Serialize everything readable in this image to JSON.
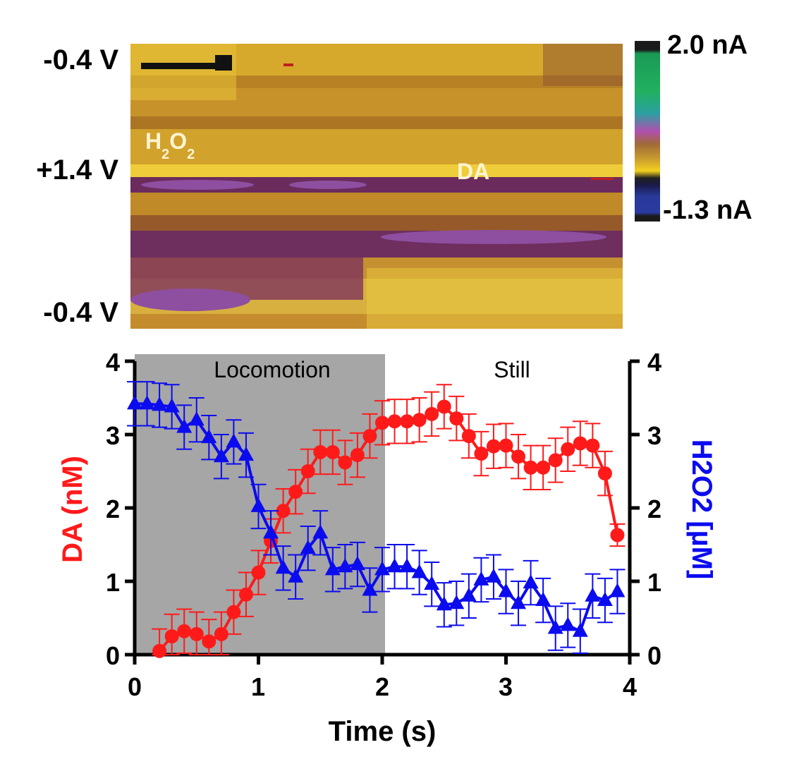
{
  "chart_data": [
    {
      "type": "heatmap",
      "title": "",
      "y_tick_labels": [
        "-0.4 V",
        "+1.4 V",
        "-0.4 V"
      ],
      "colorbar": {
        "max_label": "2.0 nA",
        "min_label": "-1.3 nA",
        "max": 2.0,
        "min": -1.3
      },
      "annotations": {
        "h2o2": {
          "base": "H",
          "sub1": "2",
          "mid": "O",
          "sub2": "2"
        },
        "da": "DA"
      },
      "colors": {
        "background": "#c99528",
        "high": "#f0d040",
        "low": "#7a2e5f",
        "purple": "#8e4fa0"
      }
    },
    {
      "type": "line",
      "xlabel": "Time (s)",
      "ylabel_left": "DA (nM)",
      "ylabel_right": "H2O2 [µM]",
      "xlim": [
        0,
        4
      ],
      "ylim_left": [
        0,
        4
      ],
      "ylim_right": [
        0,
        4
      ],
      "x_ticks": [
        "0",
        "1",
        "2",
        "3",
        "4"
      ],
      "y_ticks_left": [
        "0",
        "1",
        "2",
        "3",
        "4"
      ],
      "y_ticks_right": [
        "0",
        "1",
        "2",
        "3",
        "4"
      ],
      "shaded_region": {
        "x_start": 0,
        "x_end": 2.0,
        "label": "Locomotion",
        "color": "#a6a6a6"
      },
      "unshaded_label": "Still",
      "series": [
        {
          "name": "DA (nM)",
          "color": "#ff1a1a",
          "marker": "circle",
          "x": [
            0.2,
            0.3,
            0.4,
            0.5,
            0.6,
            0.7,
            0.8,
            0.9,
            1.0,
            1.1,
            1.2,
            1.3,
            1.4,
            1.5,
            1.6,
            1.7,
            1.8,
            1.9,
            2.0,
            2.1,
            2.2,
            2.3,
            2.4,
            2.5,
            2.6,
            2.7,
            2.8,
            2.9,
            3.0,
            3.1,
            3.2,
            3.3,
            3.4,
            3.5,
            3.6,
            3.7,
            3.8,
            3.9
          ],
          "y": [
            0.05,
            0.25,
            0.32,
            0.28,
            0.18,
            0.28,
            0.58,
            0.82,
            1.12,
            1.55,
            1.96,
            2.22,
            2.5,
            2.76,
            2.76,
            2.62,
            2.72,
            2.98,
            3.16,
            3.18,
            3.18,
            3.2,
            3.28,
            3.38,
            3.22,
            2.98,
            2.74,
            2.84,
            2.85,
            2.7,
            2.55,
            2.55,
            2.65,
            2.8,
            2.88,
            2.85,
            2.47,
            1.63
          ],
          "err": [
            0.3,
            0.3,
            0.3,
            0.3,
            0.3,
            0.3,
            0.3,
            0.3,
            0.3,
            0.3,
            0.3,
            0.3,
            0.3,
            0.3,
            0.3,
            0.3,
            0.3,
            0.3,
            0.3,
            0.3,
            0.3,
            0.3,
            0.3,
            0.3,
            0.3,
            0.3,
            0.3,
            0.3,
            0.3,
            0.3,
            0.3,
            0.3,
            0.3,
            0.3,
            0.3,
            0.3,
            0.3,
            0.15
          ]
        },
        {
          "name": "H2O2 [µM]",
          "color": "#0b0bf0",
          "marker": "triangle",
          "x": [
            0.0,
            0.1,
            0.2,
            0.3,
            0.4,
            0.5,
            0.6,
            0.7,
            0.8,
            0.9,
            1.0,
            1.1,
            1.2,
            1.3,
            1.4,
            1.5,
            1.6,
            1.7,
            1.8,
            1.9,
            2.0,
            2.1,
            2.2,
            2.3,
            2.4,
            2.5,
            2.6,
            2.7,
            2.8,
            2.9,
            3.0,
            3.1,
            3.2,
            3.3,
            3.4,
            3.5,
            3.6,
            3.7,
            3.8,
            3.9
          ],
          "y": [
            3.42,
            3.42,
            3.4,
            3.38,
            3.1,
            3.2,
            2.96,
            2.7,
            2.9,
            2.72,
            2.02,
            1.66,
            1.18,
            1.06,
            1.45,
            1.66,
            1.16,
            1.2,
            1.23,
            0.88,
            1.16,
            1.2,
            1.2,
            1.12,
            0.96,
            0.68,
            0.7,
            0.8,
            1.02,
            1.06,
            0.86,
            0.7,
            0.98,
            0.74,
            0.36,
            0.4,
            0.32,
            0.8,
            0.74,
            0.86
          ],
          "err": [
            0.3,
            0.3,
            0.3,
            0.3,
            0.3,
            0.3,
            0.3,
            0.3,
            0.3,
            0.3,
            0.3,
            0.3,
            0.3,
            0.3,
            0.3,
            0.3,
            0.3,
            0.3,
            0.3,
            0.3,
            0.3,
            0.3,
            0.3,
            0.3,
            0.3,
            0.3,
            0.3,
            0.3,
            0.3,
            0.3,
            0.3,
            0.3,
            0.3,
            0.3,
            0.3,
            0.3,
            0.3,
            0.3,
            0.3,
            0.3
          ]
        }
      ]
    }
  ]
}
